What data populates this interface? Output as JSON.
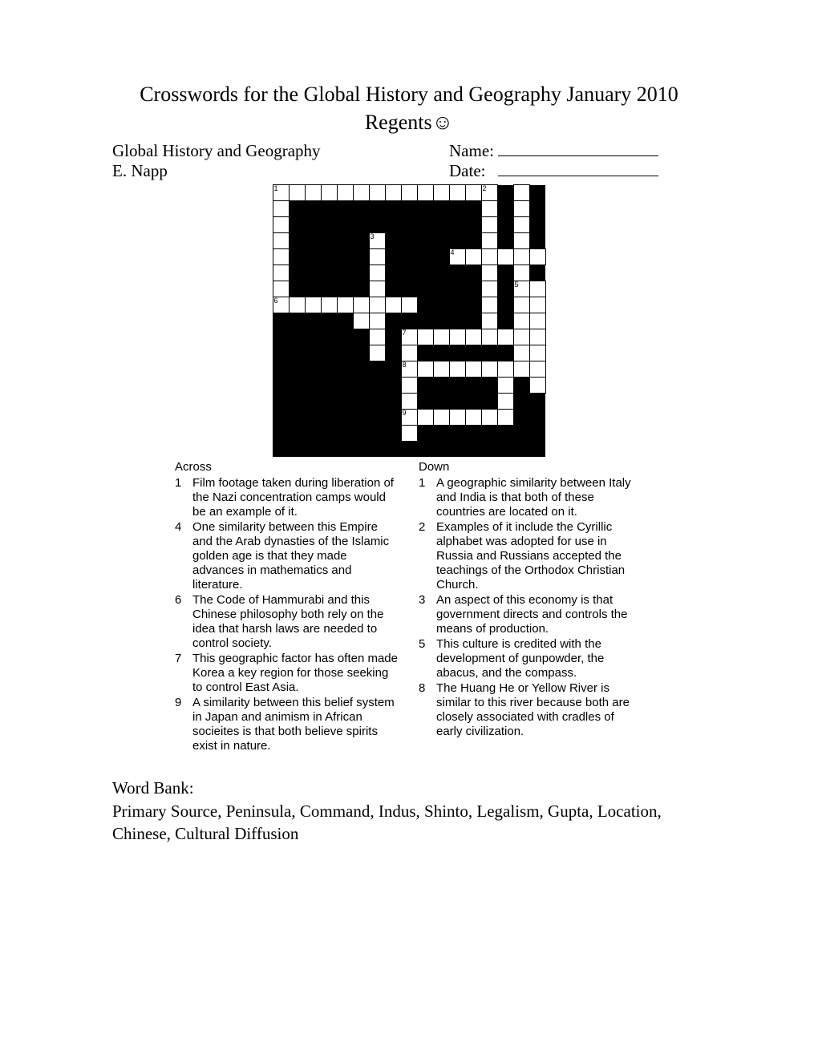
{
  "title_line1": "Crosswords for the Global History and Geography January 2010",
  "title_line2": "Regents☺",
  "header": {
    "subject": "Global History and Geography",
    "author": "E. Napp",
    "name_label": "Name:",
    "date_label": "Date:"
  },
  "grid": {
    "rows": 17,
    "cols": 17,
    "cell_size": 19,
    "colors": {
      "black": "#000000",
      "white": "#ffffff",
      "border": "#000000"
    },
    "cells": [
      "WWWWWWWWWWWWWW.W.",
      "W............W.W.",
      "W............W.W.",
      "W.....W......W.W.",
      "W.....W....WWWWWW",
      "W.....W......W.W.",
      "W.....W......W.WW",
      "WWWWWWWWW....W.WW",
      ".....WW......W.WW",
      "......W.WWWWWWWWW",
      "......W.W......WW",
      "........WWWWWWWWW",
      "........W.....W.W",
      "........W.....W..",
      "........WWWWWWW..",
      "........W........",
      "................."
    ],
    "numbers": [
      {
        "r": 0,
        "c": 0,
        "n": "1"
      },
      {
        "r": 0,
        "c": 13,
        "n": "2"
      },
      {
        "r": 3,
        "c": 6,
        "n": "3"
      },
      {
        "r": 4,
        "c": 11,
        "n": "4"
      },
      {
        "r": 6,
        "c": 15,
        "n": "5"
      },
      {
        "r": 7,
        "c": 0,
        "n": "6"
      },
      {
        "r": 9,
        "c": 8,
        "n": "7"
      },
      {
        "r": 11,
        "c": 8,
        "n": "8"
      },
      {
        "r": 14,
        "c": 8,
        "n": "9"
      }
    ]
  },
  "clues": {
    "across_label": "Across",
    "down_label": "Down",
    "across": [
      {
        "n": "1",
        "t": "Film footage taken during liberation of the Nazi concentration camps would be an example of it."
      },
      {
        "n": "4",
        "t": "One similarity between this Empire and the Arab dynasties of the Islamic golden age is that they made advances in mathematics and literature."
      },
      {
        "n": "6",
        "t": "The Code of Hammurabi and this Chinese philosophy both rely on the idea that harsh laws are needed to control society."
      },
      {
        "n": "7",
        "t": "This geographic factor has often made Korea a key region for those seeking to control East Asia."
      },
      {
        "n": "9",
        "t": "A similarity between this belief system in Japan and animism in African socieites is that both believe spirits exist in nature."
      }
    ],
    "down": [
      {
        "n": "1",
        "t": "A geographic similarity between Italy and India is that both of these countries are located on it."
      },
      {
        "n": "2",
        "t": "Examples of it include the Cyrillic alphabet was adopted for use in Russia and Russians accepted the teachings of the Orthodox Christian Church."
      },
      {
        "n": "3",
        "t": "An aspect of this economy is that government directs and controls the means of production."
      },
      {
        "n": "5",
        "t": "This culture is credited with the development of gunpowder, the abacus, and the compass."
      },
      {
        "n": "8",
        "t": "The Huang He or Yellow River is similar to this river because both are closely associated with cradles of early civilization."
      }
    ]
  },
  "wordbank": {
    "title": "Word Bank:",
    "list": "  Primary Source, Peninsula, Command, Indus, Shinto, Legalism, Gupta, Location, Chinese, Cultural Diffusion"
  }
}
